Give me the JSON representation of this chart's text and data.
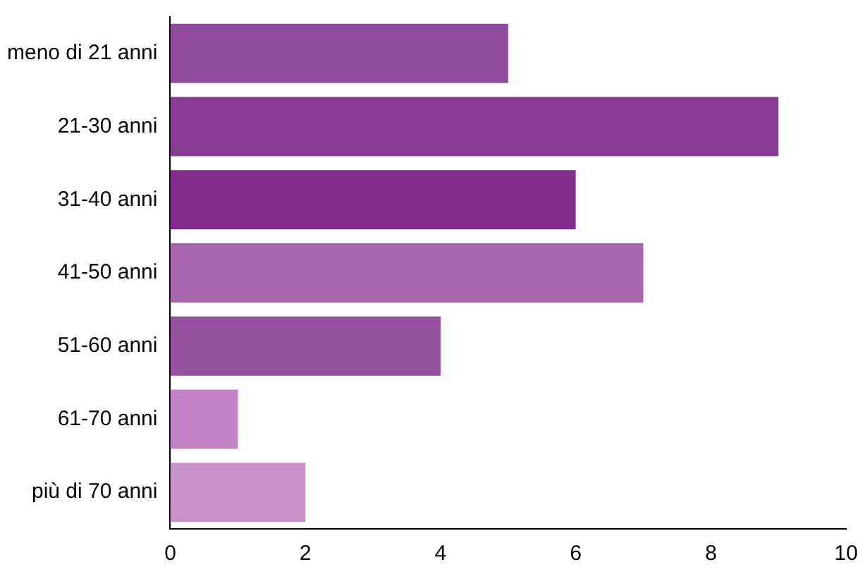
{
  "chart_data": {
    "type": "bar",
    "orientation": "horizontal",
    "categories": [
      "meno di 21 anni",
      "21-30 anni",
      "31-40 anni",
      "41-50 anni",
      "51-60 anni",
      "61-70 anni",
      "più di 70 anni"
    ],
    "values": [
      5,
      9,
      6,
      7,
      4,
      1,
      2
    ],
    "colors": [
      "#8f4a9c",
      "#8a3b96",
      "#832e8d",
      "#a866ad",
      "#9650a0",
      "#c283c4",
      "#c893c8"
    ],
    "xlim": [
      0,
      10
    ],
    "xticks": [
      0,
      2,
      4,
      6,
      8,
      10
    ],
    "grid": false,
    "legend": false
  }
}
